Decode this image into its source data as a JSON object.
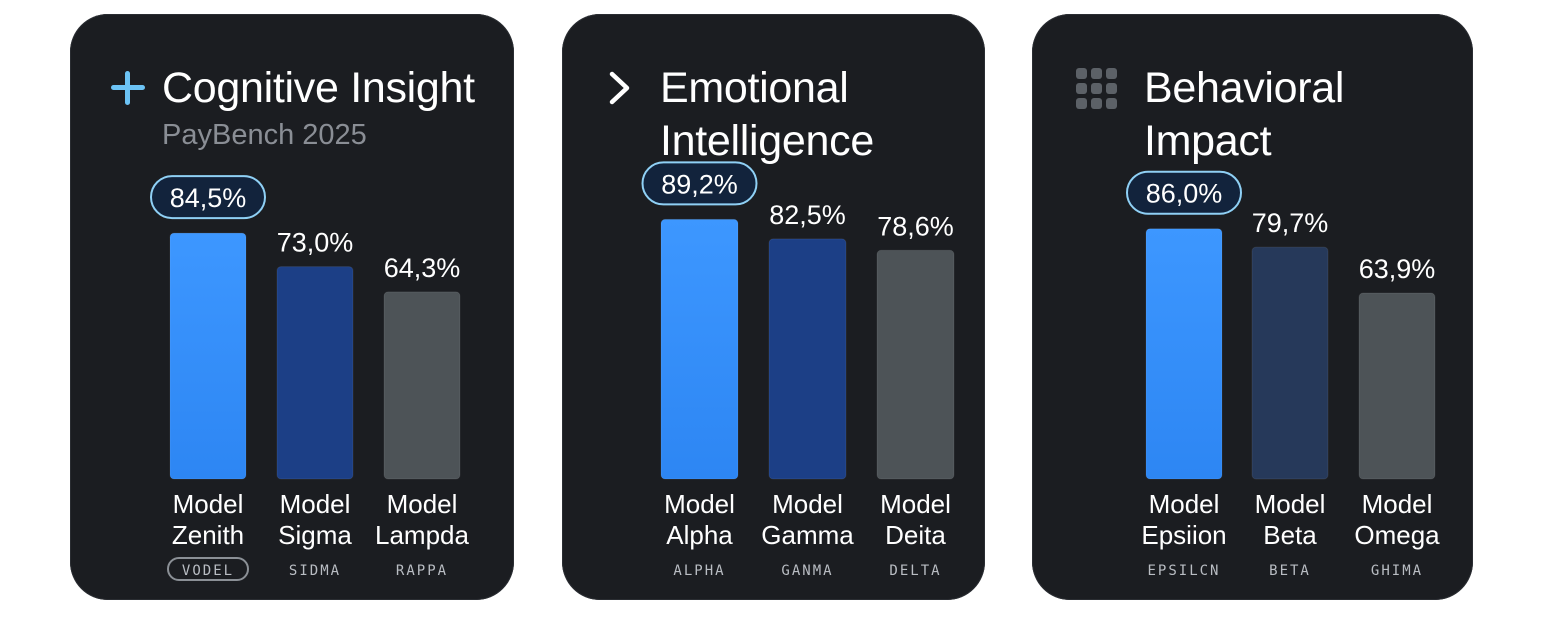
{
  "colors": {
    "highlight": "#2d86f3",
    "second": "#1c3f86",
    "other": "#4d5357",
    "pill_border": "#8fd0f5",
    "pill_fill": "#12233c"
  },
  "chart_data": [
    {
      "type": "bar",
      "title": "Cognitive Insight",
      "subtitle": "PayBench 2025",
      "icon": "plus-icon",
      "categories": [
        "Model Zenith",
        "Model Sigma",
        "Model Lampda"
      ],
      "category_lines": [
        [
          "Model",
          "Zenith"
        ],
        [
          "Model",
          "Sigma"
        ],
        [
          "Model",
          "Lampda"
        ]
      ],
      "sublabels": [
        "VODEL",
        "SIDMA",
        "RAPPA"
      ],
      "values": [
        84.5,
        73.0,
        64.3
      ],
      "value_labels": [
        "84,5%",
        "73,0%",
        "64,3%"
      ],
      "bar_colors": [
        "#2d86f3",
        "#1c3f86",
        "#4d5357"
      ],
      "ylim": [
        0,
        100
      ],
      "grid": false,
      "highlight_index": 0
    },
    {
      "type": "bar",
      "title": "Emotional Intelligence",
      "title_lines": [
        "Emotional",
        "Intelligence"
      ],
      "icon": "chevron-right-icon",
      "categories": [
        "Model Alpha",
        "Model Gamma",
        "Model Deita"
      ],
      "category_lines": [
        [
          "Model",
          "Alpha"
        ],
        [
          "Model",
          "Gamma"
        ],
        [
          "Model",
          "Deita"
        ]
      ],
      "sublabels": [
        "ALPHA",
        "GANMA",
        "DELTA"
      ],
      "values": [
        89.2,
        82.5,
        78.6
      ],
      "value_labels": [
        "89,2%",
        "82,5%",
        "78,6%"
      ],
      "bar_colors": [
        "#2d86f3",
        "#1c3f86",
        "#4d5357"
      ],
      "ylim": [
        0,
        100
      ],
      "grid": false,
      "highlight_index": 0
    },
    {
      "type": "bar",
      "title": "Behavioral Impact",
      "title_lines": [
        "Behavioral",
        "Impact"
      ],
      "icon": "grid-icon",
      "categories": [
        "Model Epsiion",
        "Model Beta",
        "Model Omega"
      ],
      "category_lines": [
        [
          "Model",
          "Epsiion"
        ],
        [
          "Model",
          "Beta"
        ],
        [
          "Model",
          "Omega"
        ]
      ],
      "sublabels": [
        "EPSILCN",
        "BETA",
        "GHIMA"
      ],
      "values": [
        86.0,
        79.7,
        63.9
      ],
      "value_labels": [
        "86,0%",
        "79,7%",
        "63,9%"
      ],
      "bar_colors": [
        "#2d86f3",
        "#26395a",
        "#4d5357"
      ],
      "ylim": [
        0,
        100
      ],
      "grid": false,
      "highlight_index": 0
    }
  ]
}
